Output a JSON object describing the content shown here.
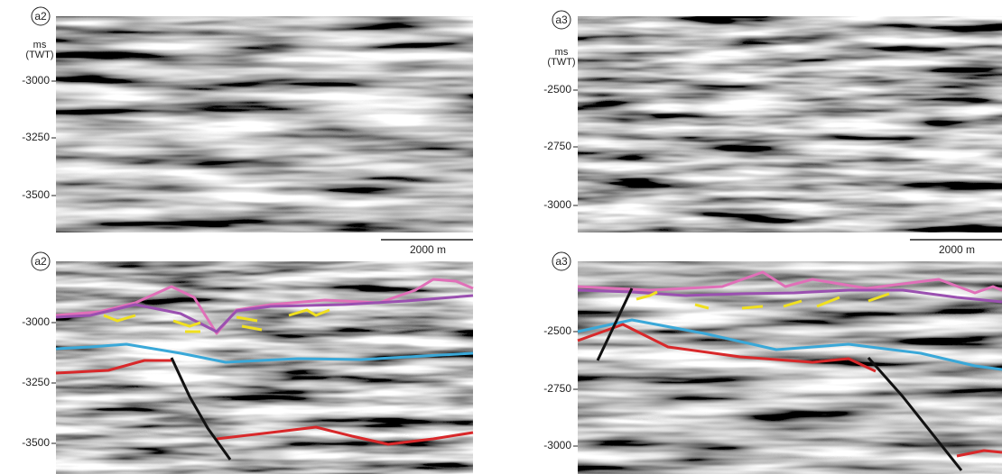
{
  "panels": [
    {
      "label": "a2",
      "unit": [
        "ms",
        "(TWT)"
      ],
      "ticks": [
        -3000,
        -3250,
        -3500
      ],
      "scale_bar": "2000 m"
    },
    {
      "label": "a3",
      "unit": [
        "ms",
        "(TWT)"
      ],
      "ticks": [
        -2500,
        -2750,
        -3000
      ],
      "scale_bar": "2000 m"
    },
    {
      "label": "a2",
      "ticks": [
        -3000,
        -3250,
        -3500
      ]
    },
    {
      "label": "a3",
      "ticks": [
        -2500,
        -2750,
        -3000
      ]
    }
  ]
}
